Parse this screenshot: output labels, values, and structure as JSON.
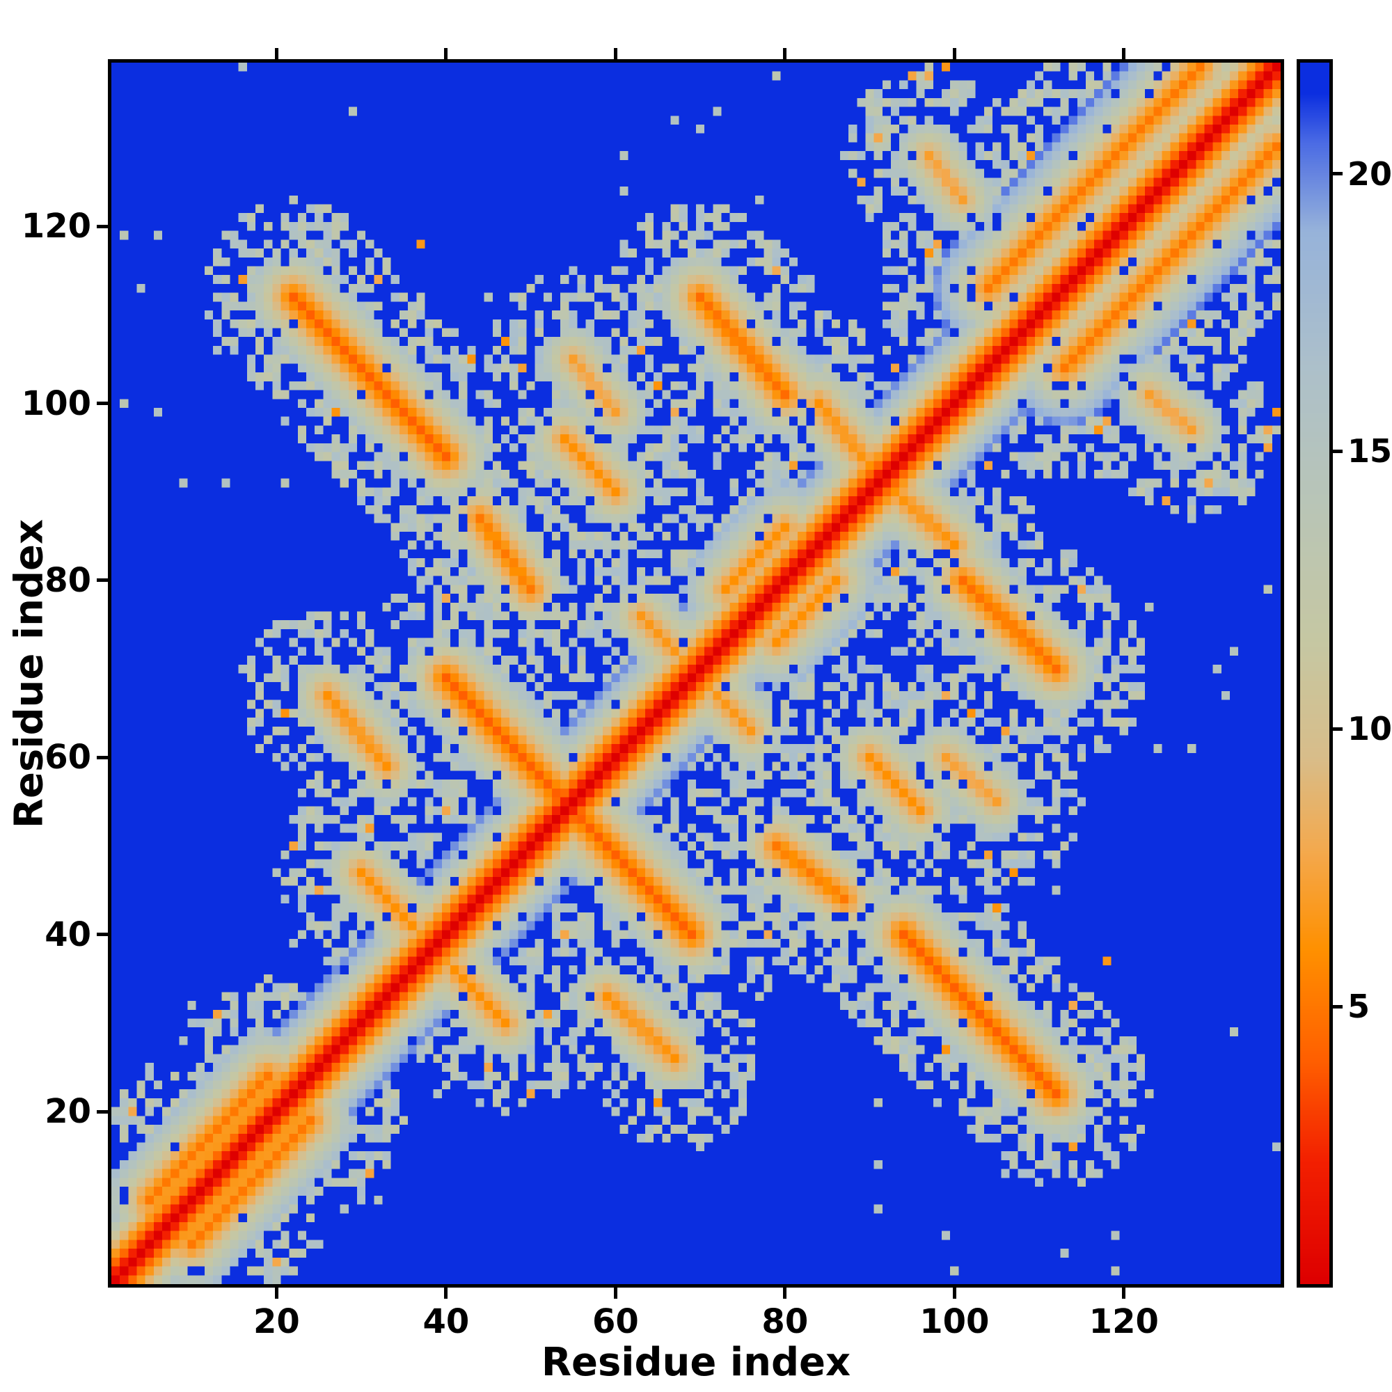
{
  "colors": {
    "background": "#ffffff",
    "spine": "#000000",
    "text": "#000000",
    "field_blue": "#0b2ee0"
  },
  "chart_data": {
    "type": "heatmap",
    "title": "",
    "xlabel": "Residue index",
    "ylabel": "Residue index",
    "x_range": [
      1,
      138
    ],
    "y_range": [
      1,
      138
    ],
    "x_ticks": [
      20,
      40,
      60,
      80,
      100,
      120
    ],
    "y_ticks": [
      20,
      40,
      60,
      80,
      100,
      120
    ],
    "grid": false,
    "legend": "colorbar-right",
    "colorbar": {
      "range": [
        0,
        22
      ],
      "ticks": [
        5,
        10,
        15,
        20
      ],
      "position": "right"
    },
    "colormap_stops": [
      [
        0,
        "#de0000"
      ],
      [
        2.2,
        "#f32000"
      ],
      [
        4,
        "#ff5f00"
      ],
      [
        6,
        "#ff9000"
      ],
      [
        7.8,
        "#f4a94e"
      ],
      [
        9.5,
        "#d8bd8a"
      ],
      [
        11.5,
        "#c6c7a2"
      ],
      [
        14,
        "#b9c5b6"
      ],
      [
        16.5,
        "#adc0ca"
      ],
      [
        19,
        "#97b3da"
      ],
      [
        20.6,
        "#4b6be4"
      ],
      [
        21.5,
        "#0b2ee0"
      ],
      [
        22,
        "#0b2ee0"
      ]
    ],
    "background_value": 22,
    "matrix": {
      "size": 138,
      "symmetric": true,
      "diagonal_slope": 2.2,
      "features": [
        {
          "x0": 22,
          "y0": 112,
          "x1": 40,
          "y1": 94,
          "core": 4,
          "width": 5
        },
        {
          "x0": 40,
          "y0": 69,
          "x1": 53,
          "y1": 56,
          "core": 4,
          "width": 5
        },
        {
          "x0": 44,
          "y0": 87,
          "x1": 50,
          "y1": 79,
          "core": 5,
          "width": 4
        },
        {
          "x0": 70,
          "y0": 112,
          "x1": 80,
          "y1": 101,
          "core": 4.5,
          "width": 5
        },
        {
          "x0": 104,
          "y0": 113,
          "x1": 129,
          "y1": 138,
          "core": 5,
          "width": 7
        },
        {
          "x0": 5,
          "y0": 10,
          "x1": 19,
          "y1": 24,
          "core": 5,
          "width": 5
        },
        {
          "x0": 26,
          "y0": 67,
          "x1": 33,
          "y1": 59,
          "core": 6,
          "width": 4
        },
        {
          "x0": 73,
          "y0": 79,
          "x1": 80,
          "y1": 86,
          "core": 6,
          "width": 5
        },
        {
          "x0": 84,
          "y0": 100,
          "x1": 90,
          "y1": 93,
          "core": 6,
          "width": 4
        },
        {
          "x0": 55,
          "y0": 105,
          "x1": 60,
          "y1": 99,
          "core": 7,
          "width": 4
        },
        {
          "x0": 63,
          "y0": 76,
          "x1": 67,
          "y1": 72,
          "core": 6.5,
          "width": 4
        },
        {
          "x0": 30,
          "y0": 47,
          "x1": 36,
          "y1": 41,
          "core": 6,
          "width": 4
        },
        {
          "x0": 54,
          "y0": 96,
          "x1": 60,
          "y1": 90,
          "core": 6,
          "width": 4
        },
        {
          "x0": 97,
          "y0": 128,
          "x1": 101,
          "y1": 123,
          "core": 7,
          "width": 4
        }
      ],
      "speckle": {
        "seed": 20240613,
        "density": 0.5,
        "value_min": 12,
        "value_max": 17,
        "hole_chance": 0.06,
        "orange_chance": 0.02,
        "far_density": 0.004
      }
    }
  }
}
